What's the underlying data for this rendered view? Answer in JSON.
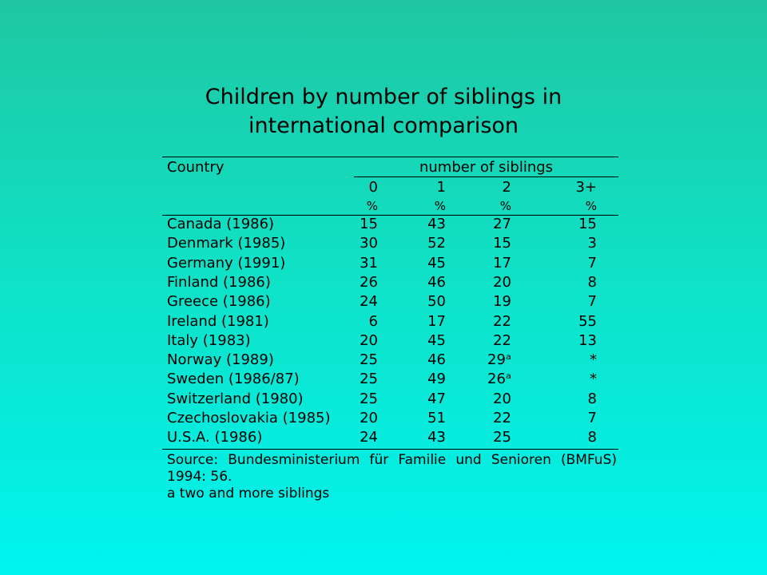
{
  "slide": {
    "title_line1": "Children by number of siblings in",
    "title_line2": "international comparison"
  },
  "table": {
    "header_country": "Country",
    "header_group": "number of siblings",
    "columns": [
      "0",
      "1",
      "2",
      "3+"
    ],
    "units": [
      "%",
      "%",
      "%",
      "%"
    ],
    "rows": [
      {
        "country": "Canada (1986)",
        "v0": "15",
        "v1": "43",
        "v2": "27",
        "v3": "15"
      },
      {
        "country": "Denmark (1985)",
        "v0": "30",
        "v1": "52",
        "v2": "15",
        "v3": "3"
      },
      {
        "country": "Germany (1991)",
        "v0": "31",
        "v1": "45",
        "v2": "17",
        "v3": "7"
      },
      {
        "country": "Finland (1986)",
        "v0": "26",
        "v1": "46",
        "v2": "20",
        "v3": "8"
      },
      {
        "country": "Greece (1986)",
        "v0": "24",
        "v1": "50",
        "v2": "19",
        "v3": "7"
      },
      {
        "country": "Ireland (1981)",
        "v0": "6",
        "v1": "17",
        "v2": "22",
        "v3": "55"
      },
      {
        "country": "Italy (1983)",
        "v0": "20",
        "v1": "45",
        "v2": "22",
        "v3": "13"
      },
      {
        "country": "Norway (1989)",
        "v0": "25",
        "v1": "46",
        "v2": "29ᵃ",
        "v3": "*"
      },
      {
        "country": "Sweden (1986/87)",
        "v0": "25",
        "v1": "49",
        "v2": "26ᵃ",
        "v3": "*"
      },
      {
        "country": "Switzerland (1980)",
        "v0": "25",
        "v1": "47",
        "v2": "20",
        "v3": "8"
      },
      {
        "country": "Czechoslovakia (1985)",
        "v0": "20",
        "v1": "51",
        "v2": "22",
        "v3": "7"
      },
      {
        "country": "U.S.A. (1986)",
        "v0": "24",
        "v1": "43",
        "v2": "25",
        "v3": "8"
      }
    ],
    "source_line1": "Source: Bundesministerium für Familie und Senioren (BMFuS)",
    "source_line2": "1994: 56.",
    "footnote": "a two and more siblings"
  },
  "colors": {
    "background_top": "#1fc7a2",
    "background_bottom": "#00f4f0",
    "text": "#000000"
  }
}
